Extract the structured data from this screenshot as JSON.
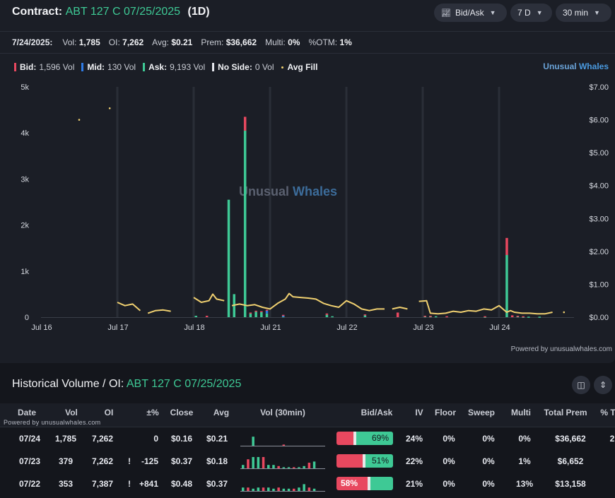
{
  "header": {
    "label": "Contract:",
    "contract": "ABT 127 C 07/25/2025",
    "period": "(1D)",
    "controls": [
      {
        "name": "bid-ask-dropdown",
        "icon": "line-chart-icon",
        "label": "Bid/Ask"
      },
      {
        "name": "range-dropdown",
        "label": "7 D"
      },
      {
        "name": "interval-dropdown",
        "label": "30 min"
      }
    ]
  },
  "stats": {
    "date": "7/24/2025:",
    "vol_label": "Vol:",
    "vol": "1,785",
    "oi_label": "OI:",
    "oi": "7,262",
    "avg_label": "Avg:",
    "avg": "$0.21",
    "prem_label": "Prem:",
    "prem": "$36,662",
    "multi_label": "Multi:",
    "multi": "0%",
    "otm_label": "%OTM:",
    "otm": "1%"
  },
  "legend": {
    "bid_label": "Bid:",
    "bid": "1,596 Vol",
    "mid_label": "Mid:",
    "mid": "130 Vol",
    "ask_label": "Ask:",
    "ask": "9,193 Vol",
    "noside_label": "No Side:",
    "noside": "0 Vol",
    "avgfill_label": "Avg Fill"
  },
  "brand": {
    "a": "Unusual",
    "b": "Whales"
  },
  "colors": {
    "bid": "#e8485f",
    "mid": "#2f7be6",
    "ask": "#3ec995",
    "noside": "#e6e8ee",
    "avgfill": "#f0d070",
    "contract": "#3ec995"
  },
  "chart_data": {
    "type": "bar",
    "watermark": {
      "a": "Unusual",
      "b": "Whales"
    },
    "x_ticks": [
      "Jul 16",
      "Jul 17",
      "Jul 18",
      "Jul 21",
      "Jul 22",
      "Jul 23",
      "Jul 24"
    ],
    "y_left_ticks": [
      "0",
      "1k",
      "2k",
      "3k",
      "4k",
      "5k"
    ],
    "y_left_range": [
      0,
      5000
    ],
    "y_right_ticks": [
      "$0.00",
      "$1.00",
      "$2.00",
      "$3.00",
      "$4.00",
      "$5.00",
      "$6.00",
      "$7.00"
    ],
    "y_right_range": [
      0,
      7
    ],
    "slots_per_day": 14,
    "bars": [
      {
        "day": 2,
        "slot": 0,
        "ask": 30,
        "bid": 0
      },
      {
        "day": 2,
        "slot": 2,
        "ask": 0,
        "bid": 30
      },
      {
        "day": 2,
        "slot": 6,
        "ask": 2550,
        "bid": 0
      },
      {
        "day": 2,
        "slot": 7,
        "ask": 500,
        "bid": 0
      },
      {
        "day": 2,
        "slot": 9,
        "ask": 4050,
        "bid": 300
      },
      {
        "day": 2,
        "slot": 10,
        "ask": 80,
        "bid": 20
      },
      {
        "day": 2,
        "slot": 11,
        "ask": 120,
        "bid": 20
      },
      {
        "day": 2,
        "slot": 12,
        "ask": 110,
        "bid": 20
      },
      {
        "day": 2,
        "slot": 13,
        "ask": 80,
        "bid": 20,
        "mid": 60
      },
      {
        "day": 3,
        "slot": 2,
        "ask": 20,
        "bid": 20,
        "mid": 10
      },
      {
        "day": 3,
        "slot": 10,
        "ask": 50,
        "bid": 30
      },
      {
        "day": 3,
        "slot": 11,
        "ask": 20,
        "bid": 0
      },
      {
        "day": 4,
        "slot": 3,
        "ask": 40,
        "bid": 20
      },
      {
        "day": 4,
        "slot": 9,
        "ask": 0,
        "bid": 100
      },
      {
        "day": 5,
        "slot": 0,
        "ask": 20,
        "bid": 10
      },
      {
        "day": 5,
        "slot": 1,
        "ask": 20,
        "bid": 10
      },
      {
        "day": 5,
        "slot": 2,
        "ask": 20,
        "bid": 0
      },
      {
        "day": 5,
        "slot": 4,
        "ask": 0,
        "bid": 20
      },
      {
        "day": 5,
        "slot": 11,
        "ask": 10,
        "bid": 10
      },
      {
        "day": 6,
        "slot": 1,
        "ask": 1350,
        "bid": 370
      },
      {
        "day": 6,
        "slot": 2,
        "ask": 0,
        "bid": 40
      },
      {
        "day": 6,
        "slot": 3,
        "ask": 20,
        "bid": 10
      },
      {
        "day": 6,
        "slot": 4,
        "ask": 10,
        "bid": 10
      },
      {
        "day": 6,
        "slot": 5,
        "ask": 10,
        "bid": 0
      },
      {
        "day": 6,
        "slot": 7,
        "ask": 10,
        "bid": 0
      }
    ],
    "avg_fill": [
      [
        [
          0.5,
          6.0
        ]
      ],
      [
        [
          0.9,
          6.35
        ]
      ],
      [
        [
          1.0,
          0.45
        ],
        [
          1.1,
          0.35
        ],
        [
          1.2,
          0.4
        ],
        [
          1.3,
          0.2
        ]
      ],
      [
        [
          1.4,
          0.12
        ],
        [
          1.5,
          0.2
        ],
        [
          1.6,
          0.22
        ],
        [
          1.7,
          0.18
        ]
      ],
      [
        [
          2.0,
          0.6
        ],
        [
          2.1,
          0.45
        ],
        [
          2.2,
          0.5
        ],
        [
          2.25,
          0.7
        ],
        [
          2.3,
          0.55
        ],
        [
          2.4,
          0.5
        ]
      ],
      [
        [
          2.5,
          0.35
        ],
        [
          2.6,
          0.4
        ],
        [
          2.7,
          0.35
        ],
        [
          2.8,
          0.38
        ],
        [
          2.9,
          0.3
        ],
        [
          3.0,
          0.25
        ],
        [
          3.1,
          0.42
        ],
        [
          3.2,
          0.55
        ],
        [
          3.25,
          0.72
        ],
        [
          3.3,
          0.62
        ],
        [
          3.4,
          0.6
        ],
        [
          3.5,
          0.58
        ],
        [
          3.6,
          0.55
        ],
        [
          3.7,
          0.42
        ],
        [
          3.8,
          0.35
        ],
        [
          3.9,
          0.3
        ],
        [
          4.0,
          0.5
        ],
        [
          4.1,
          0.4
        ],
        [
          4.2,
          0.25
        ],
        [
          4.3,
          0.2
        ],
        [
          4.4,
          0.25
        ],
        [
          4.5,
          0.25
        ]
      ],
      [
        [
          4.6,
          0.25
        ],
        [
          4.7,
          0.3
        ],
        [
          4.8,
          0.25
        ]
      ],
      [
        [
          4.95,
          0.48
        ],
        [
          5.05,
          0.5
        ],
        [
          5.1,
          0.12
        ],
        [
          5.2,
          0.1
        ],
        [
          5.3,
          0.12
        ],
        [
          5.4,
          0.18
        ],
        [
          5.5,
          0.15
        ],
        [
          5.6,
          0.2
        ],
        [
          5.7,
          0.18
        ],
        [
          5.8,
          0.25
        ],
        [
          5.9,
          0.22
        ],
        [
          6.0,
          0.35
        ],
        [
          6.05,
          0.25
        ],
        [
          6.1,
          0.15
        ],
        [
          6.15,
          0.2
        ],
        [
          6.2,
          0.15
        ],
        [
          6.3,
          0.12
        ],
        [
          6.4,
          0.12
        ],
        [
          6.5,
          0.1
        ],
        [
          6.6,
          0.1
        ],
        [
          6.7,
          0.15
        ]
      ],
      [
        [
          6.85,
          0.15
        ]
      ]
    ]
  },
  "powered": "Powered by unusualwhales.com",
  "historical": {
    "label": "Historical Volume / OI:",
    "contract": "ABT 127 C 07/25/2025",
    "powered_small": "Powered by unusualwhales.com",
    "headers": [
      "Date",
      "Vol",
      "OI",
      "±%",
      "Close",
      "Avg",
      "Vol (30min)",
      "Bid/Ask",
      "IV",
      "Floor",
      "Sweep",
      "Multi",
      "Total Prem",
      "% T"
    ],
    "rows": [
      {
        "date": "07/24",
        "vol": "1,785",
        "oi": "7,262",
        "flag": "",
        "chg": "0",
        "close": "$0.16",
        "avg": "$0.21",
        "bid_pct": 0.31,
        "label": "69%",
        "label_side": "ask",
        "iv": "24%",
        "floor": "0%",
        "sweep": "0%",
        "multi": "0%",
        "prem": "$36,662",
        "pt": "2",
        "spark": [
          [
            0,
            0
          ],
          [
            1,
            0
          ],
          [
            2,
            8
          ],
          [
            5,
            0
          ],
          [
            8,
            1
          ]
        ]
      },
      {
        "date": "07/23",
        "vol": "379",
        "oi": "7,262",
        "flag": "!",
        "chg": "-125",
        "close": "$0.37",
        "avg": "$0.18",
        "bid_pct": 0.49,
        "label": "51%",
        "label_side": "ask",
        "iv": "22%",
        "floor": "0%",
        "sweep": "0%",
        "multi": "1%",
        "prem": "$6,652",
        "pt": "",
        "spark": [
          [
            0,
            3
          ],
          [
            1,
            8
          ],
          [
            2,
            10
          ],
          [
            3,
            10
          ],
          [
            4,
            10
          ],
          [
            5,
            3
          ],
          [
            6,
            3
          ],
          [
            7,
            2
          ],
          [
            8,
            1
          ],
          [
            9,
            1
          ],
          [
            10,
            1
          ],
          [
            11,
            1
          ],
          [
            12,
            2
          ],
          [
            13,
            5
          ],
          [
            14,
            6
          ]
        ]
      },
      {
        "date": "07/22",
        "vol": "353",
        "oi": "7,387",
        "flag": "!",
        "chg": "+841",
        "close": "$0.48",
        "avg": "$0.37",
        "bid_pct": 0.58,
        "label": "58%",
        "label_side": "bid",
        "iv": "21%",
        "floor": "0%",
        "sweep": "0%",
        "multi": "13%",
        "prem": "$13,158",
        "pt": "",
        "spark": [
          [
            0,
            3
          ],
          [
            1,
            3
          ],
          [
            2,
            2
          ],
          [
            3,
            3
          ],
          [
            4,
            3
          ],
          [
            5,
            3
          ],
          [
            6,
            2
          ],
          [
            7,
            3
          ],
          [
            8,
            2
          ],
          [
            9,
            2
          ],
          [
            10,
            2
          ],
          [
            11,
            3
          ],
          [
            12,
            6
          ],
          [
            13,
            3
          ],
          [
            14,
            2
          ]
        ]
      }
    ]
  }
}
